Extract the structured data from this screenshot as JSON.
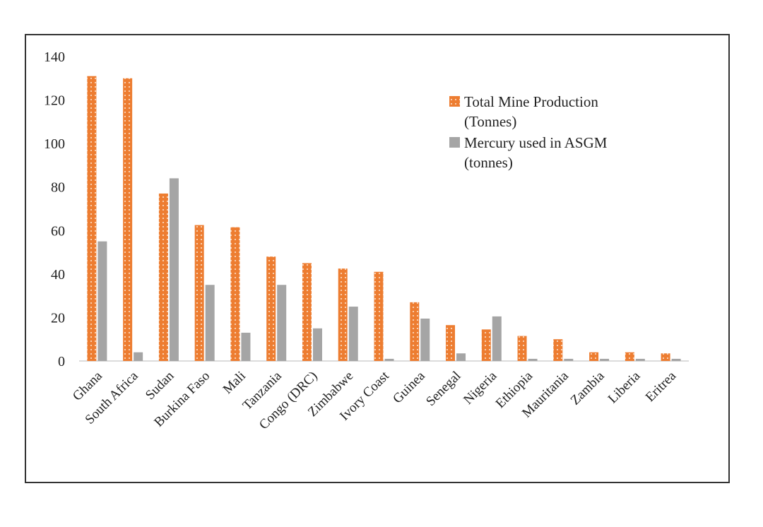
{
  "chart_data": {
    "type": "bar",
    "title": "",
    "xlabel": "",
    "ylabel": "",
    "ylim": [
      0,
      140
    ],
    "yticks": [
      0,
      20,
      40,
      60,
      80,
      100,
      120,
      140
    ],
    "grid": false,
    "legend_position": "top-right",
    "categories": [
      "Ghana",
      "South Africa",
      "Sudan",
      "Burkina Faso",
      "Mali",
      "Tanzania",
      "Congo (DRC)",
      "Zimbabwe",
      "Ivory Coast",
      "Guinea",
      "Senegal",
      "Nigeria",
      "Ethiopia",
      "Mauritania",
      "Zambia",
      "Liberia",
      "Eritrea"
    ],
    "series": [
      {
        "name": "Total Mine Production (Tonnes)",
        "legend_lines": [
          "Total Mine Production",
          "(Tonnes)"
        ],
        "color": "#ed7d31",
        "pattern": "dotted",
        "values": [
          131,
          130,
          77,
          62.5,
          61.5,
          48,
          45,
          42.5,
          41,
          27,
          16.5,
          14.5,
          11.5,
          10,
          4,
          4,
          3.5
        ]
      },
      {
        "name": "Mercury used in ASGM (tonnes)",
        "legend_lines": [
          "Mercury used in ASGM",
          "(tonnes)"
        ],
        "color": "#a5a5a5",
        "pattern": "solid",
        "values": [
          55,
          4,
          84,
          35,
          13,
          35,
          15,
          25,
          1,
          19.5,
          3.5,
          20.5,
          1,
          1,
          1,
          1,
          1
        ]
      }
    ]
  }
}
